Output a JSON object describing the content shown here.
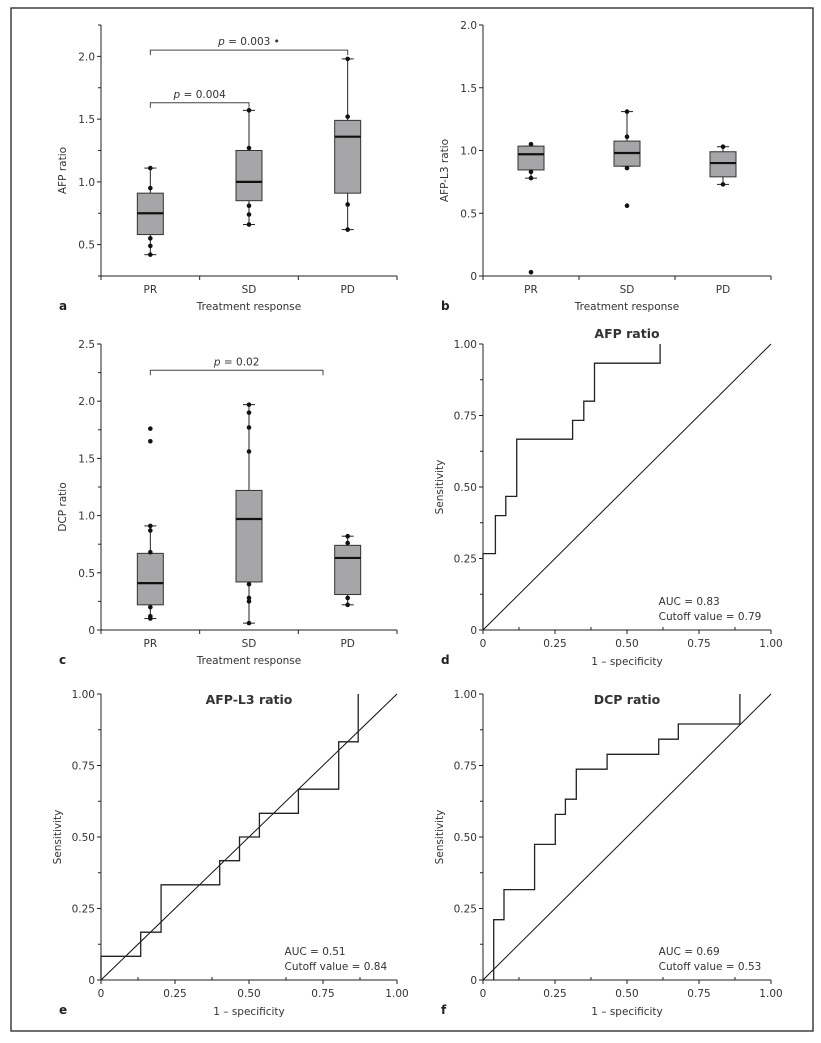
{
  "figure": {
    "frame_color": "#222222",
    "box_fill": "#a6a6a8",
    "line_color": "#222222"
  },
  "chart_data": [
    {
      "id": "a",
      "type": "box",
      "panel_letter": "a",
      "title": "",
      "xlabel": "Treatment response",
      "ylabel": "AFP ratio",
      "categories": [
        "PR",
        "SD",
        "PD"
      ],
      "ylim": [
        0.25,
        2.25
      ],
      "yticks": [
        0.5,
        1.0,
        1.5,
        2.0
      ],
      "ytick_labels": [
        "0.5",
        "1.0",
        "1.5",
        "2.0"
      ],
      "yminor": [
        0.25,
        0.75,
        1.25,
        1.75,
        2.25
      ],
      "boxes": [
        {
          "category": "PR",
          "whisker_low": 0.42,
          "q1": 0.58,
          "median": 0.75,
          "q3": 0.91,
          "whisker_high": 1.11,
          "points": [
            1.11,
            0.95,
            0.55,
            0.49,
            0.42
          ]
        },
        {
          "category": "SD",
          "whisker_low": 0.66,
          "q1": 0.85,
          "median": 1.0,
          "q3": 1.25,
          "whisker_high": 1.57,
          "points": [
            1.57,
            1.27,
            0.81,
            0.74,
            0.66
          ]
        },
        {
          "category": "PD",
          "whisker_low": 0.62,
          "q1": 0.91,
          "median": 1.36,
          "q3": 1.49,
          "whisker_high": 1.98,
          "points": [
            1.98,
            1.52,
            0.82,
            0.62
          ]
        }
      ],
      "brackets": [
        {
          "from": "PR",
          "to": "SD",
          "y": 1.63,
          "label_italic": "p",
          "label_rest": " = 0.004"
        },
        {
          "from": "PR",
          "to": "PD",
          "y": 2.05,
          "label_italic": "p",
          "label_rest": " = 0.003 •"
        }
      ]
    },
    {
      "id": "b",
      "type": "box",
      "panel_letter": "b",
      "title": "",
      "xlabel": "Treatment response",
      "ylabel": "AFP-L3 ratio",
      "categories": [
        "PR",
        "SD",
        "PD"
      ],
      "ylim": [
        0,
        2.0
      ],
      "yticks": [
        0,
        0.5,
        1.0,
        1.5,
        2.0
      ],
      "ytick_labels": [
        "0",
        "0.5",
        "1.0",
        "1.5",
        "2.0"
      ],
      "yminor": [],
      "boxes": [
        {
          "category": "PR",
          "whisker_low": 0.78,
          "q1": 0.845,
          "median": 0.97,
          "q3": 1.035,
          "whisker_high": 1.035,
          "points": [
            1.05,
            0.83,
            0.78,
            0.03
          ]
        },
        {
          "category": "SD",
          "whisker_low": 0.875,
          "q1": 0.875,
          "median": 0.98,
          "q3": 1.075,
          "whisker_high": 1.31,
          "points": [
            1.31,
            1.11,
            0.86,
            0.56
          ]
        },
        {
          "category": "PD",
          "whisker_low": 0.73,
          "q1": 0.79,
          "median": 0.9,
          "q3": 0.99,
          "whisker_high": 1.03,
          "points": [
            1.03,
            0.73
          ]
        }
      ],
      "brackets": []
    },
    {
      "id": "c",
      "type": "box",
      "panel_letter": "c",
      "title": "",
      "xlabel": "Treatment response",
      "ylabel": "DCP ratio",
      "categories": [
        "PR",
        "SD",
        "PD"
      ],
      "ylim": [
        0,
        2.5
      ],
      "yticks": [
        0,
        0.5,
        1.0,
        1.5,
        2.0,
        2.5
      ],
      "ytick_labels": [
        "0",
        "0.5",
        "1.0",
        "1.5",
        "2.0",
        "2.5"
      ],
      "yminor": [
        0.25,
        0.75,
        1.25,
        1.75,
        2.25
      ],
      "boxes": [
        {
          "category": "PR",
          "whisker_low": 0.1,
          "q1": 0.22,
          "median": 0.41,
          "q3": 0.67,
          "whisker_high": 0.91,
          "points": [
            1.76,
            1.65,
            0.91,
            0.87,
            0.68,
            0.2,
            0.12,
            0.1
          ]
        },
        {
          "category": "SD",
          "whisker_low": 0.06,
          "q1": 0.42,
          "median": 0.97,
          "q3": 1.22,
          "whisker_high": 1.97,
          "points": [
            1.97,
            1.9,
            1.77,
            1.56,
            0.4,
            0.28,
            0.25,
            0.06
          ]
        },
        {
          "category": "PD",
          "whisker_low": 0.22,
          "q1": 0.31,
          "median": 0.63,
          "q3": 0.74,
          "whisker_high": 0.82,
          "points": [
            0.82,
            0.76,
            0.28,
            0.22
          ]
        }
      ],
      "brackets": [
        {
          "from": "PR",
          "to_x": 2.25,
          "y": 2.27,
          "label_italic": "p",
          "label_rest": " = 0.02"
        }
      ]
    },
    {
      "id": "d",
      "type": "line",
      "subtype": "roc",
      "panel_letter": "d",
      "title": "AFP ratio",
      "xlabel": "1 – specificity",
      "ylabel": "Sensitivity",
      "xlim": [
        0,
        1
      ],
      "ylim": [
        0,
        1
      ],
      "ticks": [
        0,
        0.25,
        0.5,
        0.75,
        1.0
      ],
      "tick_labels": [
        "0",
        "0.25",
        "0.50",
        "0.75",
        "1.00"
      ],
      "minor": [
        0.125,
        0.375,
        0.625,
        0.875
      ],
      "annotation": [
        "AUC = 0.83",
        "Cutoff value = 0.79"
      ],
      "auc": 0.83,
      "cutoff": 0.79,
      "curve": [
        [
          0,
          0
        ],
        [
          0,
          0.267
        ],
        [
          0.043,
          0.267
        ],
        [
          0.043,
          0.4
        ],
        [
          0.079,
          0.4
        ],
        [
          0.079,
          0.467
        ],
        [
          0.117,
          0.467
        ],
        [
          0.117,
          0.667
        ],
        [
          0.311,
          0.667
        ],
        [
          0.311,
          0.733
        ],
        [
          0.35,
          0.733
        ],
        [
          0.35,
          0.8
        ],
        [
          0.387,
          0.8
        ],
        [
          0.387,
          0.933
        ],
        [
          0.615,
          0.933
        ],
        [
          0.615,
          1.0
        ]
      ],
      "reference_line": [
        [
          0,
          0
        ],
        [
          1,
          1
        ]
      ]
    },
    {
      "id": "e",
      "type": "line",
      "subtype": "roc",
      "panel_letter": "e",
      "title": "AFP-L3 ratio",
      "xlabel": "1 – specificity",
      "ylabel": "Sensitivity",
      "xlim": [
        0,
        1
      ],
      "ylim": [
        0,
        1
      ],
      "ticks": [
        0,
        0.25,
        0.5,
        0.75,
        1.0
      ],
      "tick_labels": [
        "0",
        "0.25",
        "0.50",
        "0.75",
        "1.00"
      ],
      "minor": [
        0.125,
        0.375,
        0.625,
        0.875
      ],
      "annotation": [
        "AUC = 0.51",
        "Cutoff value = 0.84"
      ],
      "auc": 0.51,
      "cutoff": 0.84,
      "curve": [
        [
          0,
          0
        ],
        [
          0,
          0.083
        ],
        [
          0.134,
          0.083
        ],
        [
          0.134,
          0.167
        ],
        [
          0.203,
          0.167
        ],
        [
          0.203,
          0.333
        ],
        [
          0.401,
          0.333
        ],
        [
          0.401,
          0.417
        ],
        [
          0.468,
          0.417
        ],
        [
          0.468,
          0.5
        ],
        [
          0.535,
          0.5
        ],
        [
          0.535,
          0.583
        ],
        [
          0.667,
          0.583
        ],
        [
          0.667,
          0.667
        ],
        [
          0.803,
          0.667
        ],
        [
          0.803,
          0.833
        ],
        [
          0.869,
          0.833
        ],
        [
          0.869,
          1.0
        ]
      ],
      "reference_line": [
        [
          0,
          0
        ],
        [
          1,
          1
        ]
      ]
    },
    {
      "id": "f",
      "type": "line",
      "subtype": "roc",
      "panel_letter": "f",
      "title": "DCP ratio",
      "xlabel": "1 – specificity",
      "ylabel": "Sensitivity",
      "xlim": [
        0,
        1
      ],
      "ylim": [
        0,
        1
      ],
      "ticks": [
        0,
        0.25,
        0.5,
        0.75,
        1.0
      ],
      "tick_labels": [
        "0",
        "0.25",
        "0.50",
        "0.75",
        "1.00"
      ],
      "minor": [
        0.125,
        0.375,
        0.625,
        0.875
      ],
      "annotation": [
        "AUC = 0.69",
        "Cutoff value = 0.53"
      ],
      "auc": 0.69,
      "cutoff": 0.53,
      "curve": [
        [
          0.037,
          0
        ],
        [
          0.037,
          0.211
        ],
        [
          0.073,
          0.211
        ],
        [
          0.073,
          0.316
        ],
        [
          0.179,
          0.316
        ],
        [
          0.179,
          0.474
        ],
        [
          0.251,
          0.474
        ],
        [
          0.251,
          0.579
        ],
        [
          0.286,
          0.579
        ],
        [
          0.286,
          0.632
        ],
        [
          0.324,
          0.632
        ],
        [
          0.324,
          0.737
        ],
        [
          0.431,
          0.737
        ],
        [
          0.431,
          0.789
        ],
        [
          0.61,
          0.789
        ],
        [
          0.61,
          0.842
        ],
        [
          0.678,
          0.842
        ],
        [
          0.678,
          0.895
        ],
        [
          0.892,
          0.895
        ],
        [
          0.892,
          1.0
        ]
      ],
      "reference_line": [
        [
          0,
          0
        ],
        [
          1,
          1
        ]
      ]
    }
  ]
}
